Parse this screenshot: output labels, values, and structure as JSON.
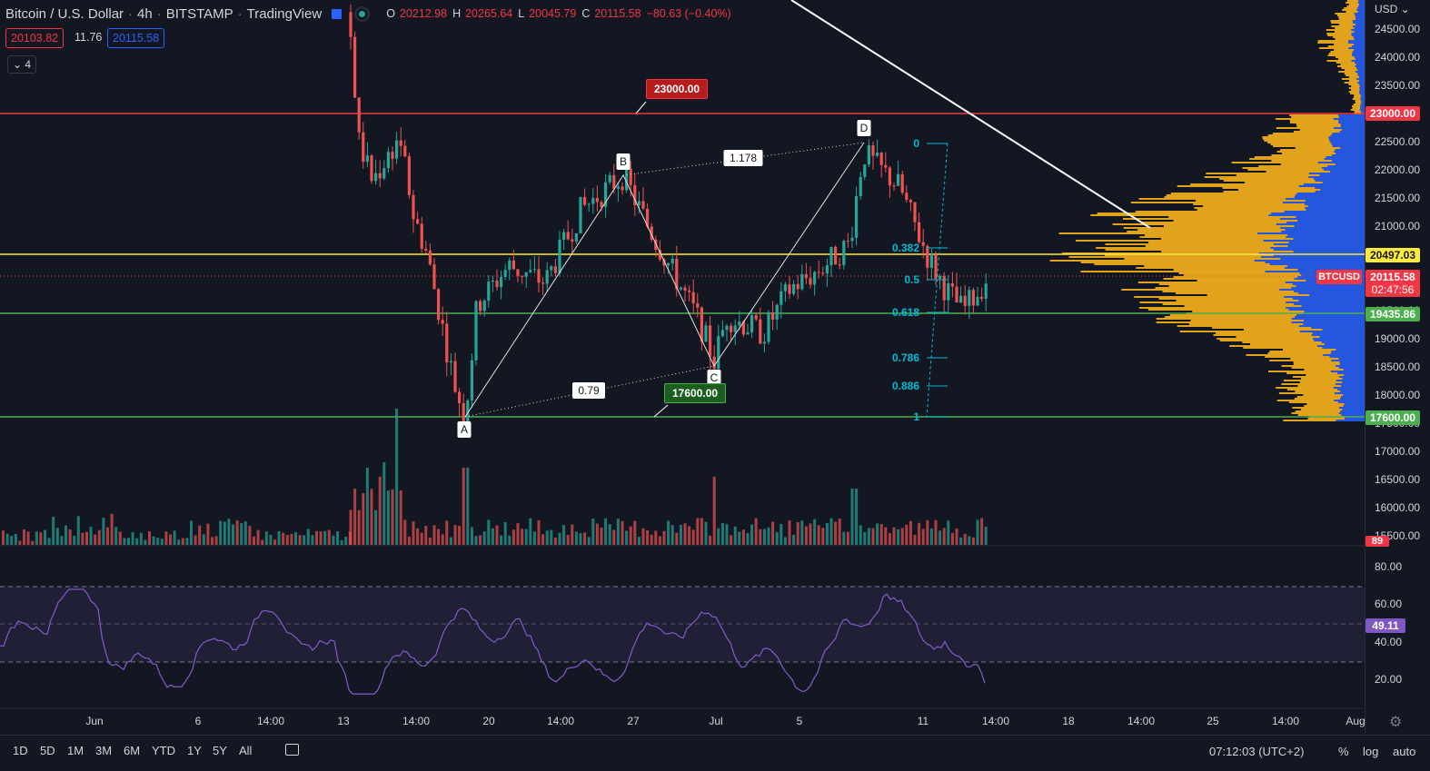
{
  "header": {
    "symbol": "Bitcoin / U.S. Dollar",
    "interval": "4h",
    "exchange": "BITSTAMP",
    "provider": "TradingView",
    "o_key": "O",
    "open": "20212.98",
    "h_key": "H",
    "high": "20265.64",
    "l_key": "L",
    "low": "20045.79",
    "c_key": "C",
    "close": "20115.58",
    "change": "−80.63 (−0.40%)",
    "bid": "20103.82",
    "spread": "11.76",
    "ask": "20115.58",
    "indicators_count": "4"
  },
  "axis": {
    "currency": "USD",
    "ticks": [
      "24500.00",
      "24000.00",
      "23500.00",
      "23000.00",
      "22500.00",
      "22000.00",
      "21500.00",
      "21000.00",
      "20500.00",
      "20000.00",
      "19500.00",
      "19000.00",
      "18500.00",
      "18000.00",
      "17500.00",
      "17000.00",
      "16500.00",
      "16000.00",
      "15500.00"
    ],
    "badges": {
      "resistance": "23000.00",
      "yellow": "20497.03",
      "symbol_tag": "BTCUSD",
      "last": "20115.58",
      "countdown": "02:47:56",
      "support_mid": "19435.86",
      "support_low": "17600.00",
      "volume": "89"
    },
    "rsi_ticks": [
      "80.00",
      "60.00",
      "40.00",
      "20.00"
    ],
    "rsi_value": "49.11"
  },
  "levels": {
    "label_high": "23000.00",
    "label_low": "17600.00"
  },
  "harmonic": {
    "A": "A",
    "B": "B",
    "C": "C",
    "D": "D",
    "ratio_ac": "0.79",
    "ratio_bd": "1.178"
  },
  "fib": [
    "0",
    "0.382",
    "0.5",
    "0.618",
    "0.786",
    "0.886",
    "1"
  ],
  "time_axis": [
    "Jun",
    "6",
    "14:00",
    "13",
    "14:00",
    "20",
    "14:00",
    "27",
    "Jul",
    "5",
    "11",
    "14:00",
    "18",
    "14:00",
    "25",
    "14:00",
    "Aug"
  ],
  "bottom": {
    "timeframes": [
      "1D",
      "5D",
      "1M",
      "3M",
      "6M",
      "YTD",
      "1Y",
      "5Y",
      "All"
    ],
    "clock": "07:12:03 (UTC+2)",
    "percent": "%",
    "log": "log",
    "auto": "auto"
  },
  "colors": {
    "up": "#26a69a",
    "down": "#ef5350",
    "red_line": "#f23645",
    "yellow_line": "#ffeb3b",
    "green_line": "#4caf50",
    "rsi": "#7e57c2",
    "fib": "#00bcd4",
    "vp_up": "#2962ff",
    "vp_down": "#f9b21c"
  }
}
